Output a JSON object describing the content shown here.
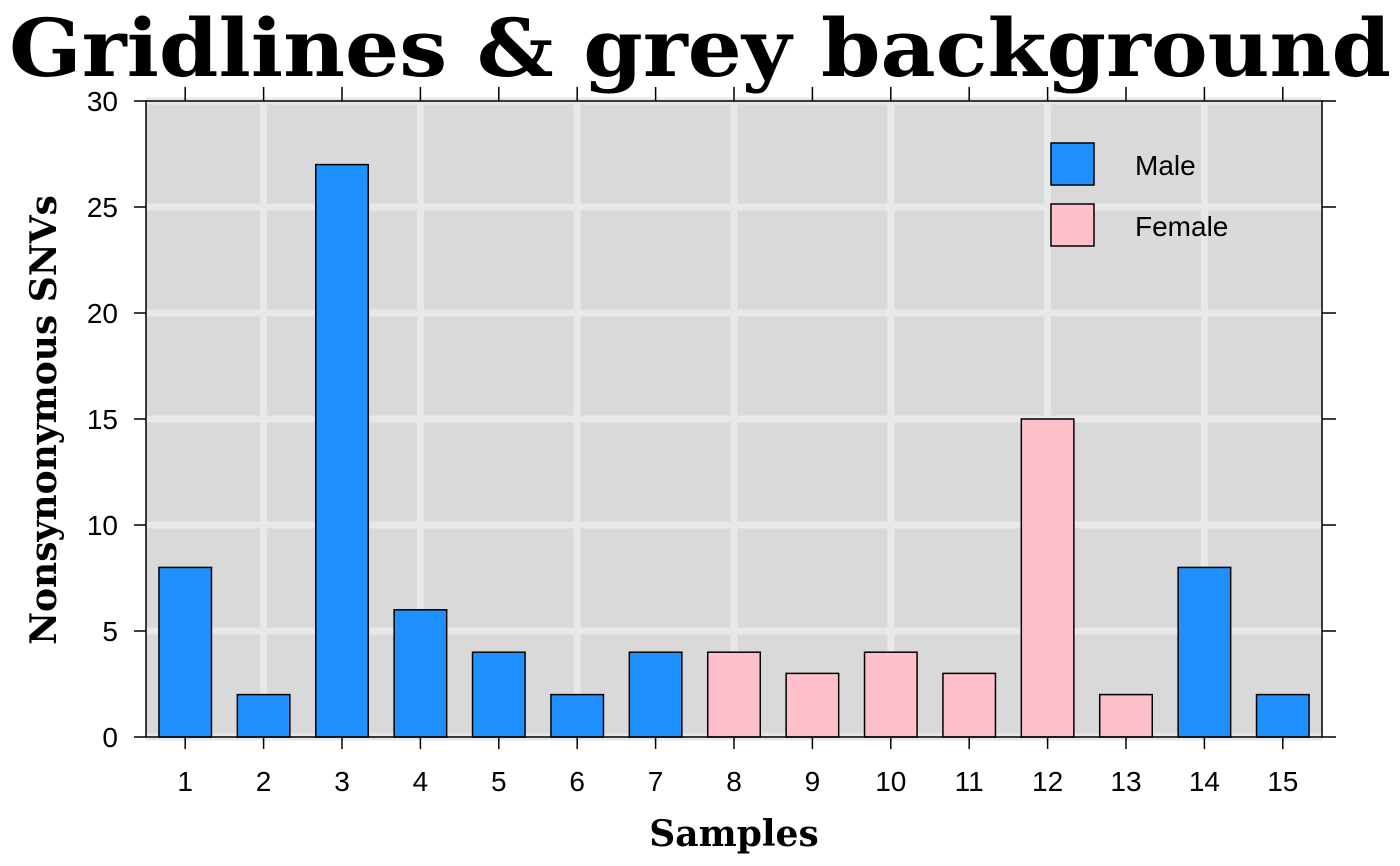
{
  "chart_data": {
    "type": "bar",
    "title": "Gridlines & grey background",
    "xlabel": "Samples",
    "ylabel": "Nonsynonymous SNVs",
    "categories": [
      "1",
      "2",
      "3",
      "4",
      "5",
      "6",
      "7",
      "8",
      "9",
      "10",
      "11",
      "12",
      "13",
      "14",
      "15"
    ],
    "values": [
      8,
      2,
      27,
      6,
      4,
      2,
      4,
      4,
      3,
      4,
      3,
      15,
      2,
      8,
      2
    ],
    "groups": [
      "Male",
      "Male",
      "Male",
      "Male",
      "Male",
      "Male",
      "Male",
      "Female",
      "Female",
      "Female",
      "Female",
      "Female",
      "Female",
      "Male",
      "Male"
    ],
    "ylim": [
      0,
      30
    ],
    "yticks": [
      0,
      5,
      10,
      15,
      20,
      25,
      30
    ],
    "grid": true,
    "background": "#d9d9d9",
    "gridline_color": "#e8e8e8",
    "legend": {
      "placement": "top-right",
      "entries": [
        {
          "label": "Male",
          "color": "#1e90ff"
        },
        {
          "label": "Female",
          "color": "#ffc0cb"
        }
      ]
    }
  }
}
